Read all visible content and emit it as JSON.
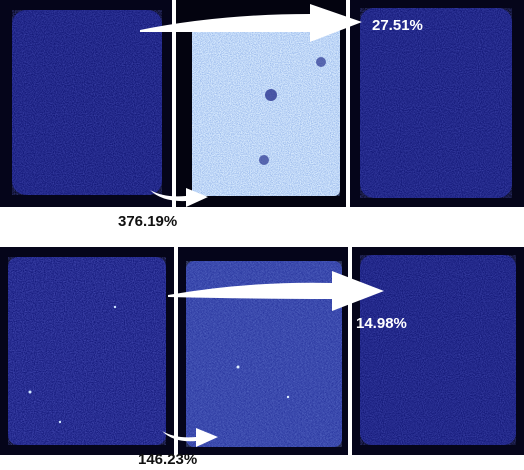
{
  "figure": {
    "top_row": {
      "fluorescence_gain_label": "376.19%",
      "fluorescence_remaining_label": "27.51%"
    },
    "bottom_row": {
      "fluorescence_gain_label": "146.23%",
      "fluorescence_remaining_label": "14.98%"
    },
    "colors": {
      "background": "#000000",
      "dim_blue": "#1b1f8a",
      "bright_cyan": "#cfe6ff",
      "medium_blue": "#3a45b8",
      "divider": "#ffffff",
      "arrow": "#ffffff"
    }
  }
}
